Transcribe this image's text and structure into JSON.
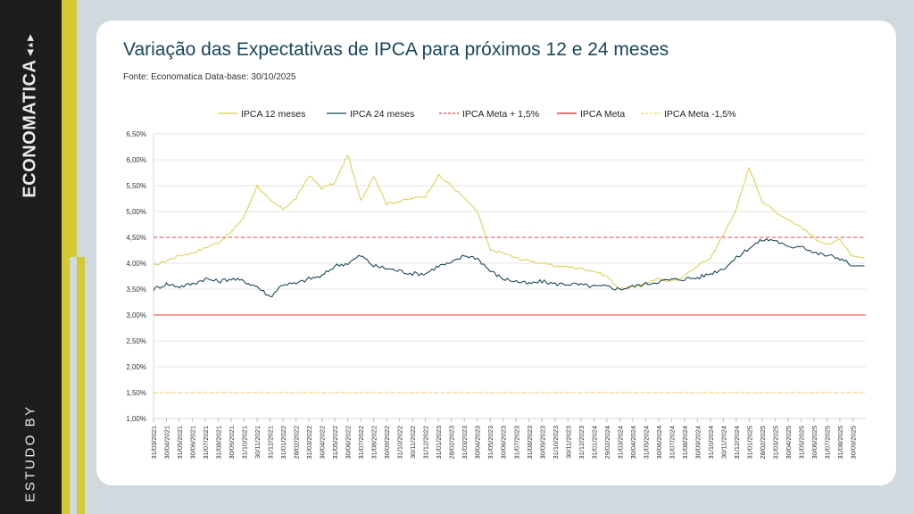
{
  "sidebar": {
    "brand": "ECONOMATICA",
    "study_label": "ESTUDO BY"
  },
  "header": {
    "title": "Variação das Expectativas de IPCA para próximos 12 e 24 meses",
    "source": "Fonte: Economatica Data-base: 30/10/2025"
  },
  "colors": {
    "ipca12": "#d8cf4a",
    "ipca24": "#1b4a5a",
    "meta_plus": "#e04545",
    "meta": "#f08080",
    "meta_minus": "#f5d36b",
    "grid": "#e6e6e6",
    "title": "#17475b"
  },
  "chart_data": {
    "type": "line",
    "title": "Variação das Expectativas de IPCA para próximos 12 e 24 meses",
    "xlabel": "",
    "ylabel": "",
    "ylim": [
      1.0,
      6.5
    ],
    "y_ticks": [
      "1,00%",
      "1,50%",
      "2,00%",
      "2,50%",
      "3,00%",
      "3,50%",
      "4,00%",
      "4,50%",
      "5,00%",
      "5,50%",
      "6,00%",
      "6,50%"
    ],
    "grid": true,
    "legend_position": "top",
    "x_ticks": [
      "31/03/2021",
      "30/04/2021",
      "31/05/2021",
      "30/06/2021",
      "31/07/2021",
      "31/08/2021",
      "30/09/2021",
      "31/10/2021",
      "30/11/2021",
      "31/12/2021",
      "31/01/2022",
      "28/02/2022",
      "31/03/2022",
      "30/04/2022",
      "31/05/2022",
      "30/06/2022",
      "31/07/2022",
      "31/08/2022",
      "30/09/2022",
      "31/10/2022",
      "30/11/2022",
      "31/12/2022",
      "31/01/2023",
      "28/02/2023",
      "31/03/2023",
      "30/04/2023",
      "31/05/2023",
      "30/06/2023",
      "31/07/2023",
      "31/08/2023",
      "30/09/2023",
      "31/10/2023",
      "30/11/2023",
      "31/12/2023",
      "31/01/2024",
      "29/02/2024",
      "31/03/2024",
      "30/04/2024",
      "31/05/2024",
      "30/06/2024",
      "31/07/2024",
      "31/08/2024",
      "30/09/2024",
      "31/10/2024",
      "30/11/2024",
      "31/12/2024",
      "31/01/2025",
      "28/02/2025",
      "31/03/2025",
      "30/04/2025",
      "31/05/2025",
      "30/06/2025",
      "31/07/2025",
      "31/08/2025",
      "30/09/2025"
    ],
    "series": [
      {
        "name": "IPCA 12 meses",
        "style": "solid",
        "values": [
          3.95,
          4.05,
          4.15,
          4.2,
          4.3,
          4.4,
          4.6,
          4.9,
          5.5,
          5.2,
          5.05,
          5.25,
          5.7,
          5.45,
          5.55,
          6.1,
          5.2,
          5.7,
          5.15,
          5.2,
          5.25,
          5.3,
          5.7,
          5.5,
          5.25,
          5.0,
          4.25,
          4.2,
          4.1,
          4.05,
          4.0,
          3.95,
          3.93,
          3.9,
          3.85,
          3.75,
          3.5,
          3.55,
          3.6,
          3.7,
          3.65,
          3.75,
          3.95,
          4.1,
          4.55,
          5.05,
          5.85,
          5.2,
          5.0,
          4.85,
          4.7,
          4.5,
          4.35,
          4.45,
          4.1
        ]
      },
      {
        "name": "IPCA 24 meses",
        "style": "solid",
        "values": [
          3.5,
          3.6,
          3.55,
          3.6,
          3.7,
          3.65,
          3.7,
          3.65,
          3.55,
          3.35,
          3.6,
          3.6,
          3.7,
          3.75,
          3.95,
          4.0,
          4.15,
          3.95,
          3.9,
          3.85,
          3.8,
          3.8,
          3.95,
          4.0,
          4.15,
          4.1,
          3.85,
          3.7,
          3.65,
          3.6,
          3.65,
          3.6,
          3.6,
          3.58,
          3.55,
          3.55,
          3.5,
          3.55,
          3.6,
          3.65,
          3.68,
          3.7,
          3.72,
          3.8,
          3.9,
          4.1,
          4.3,
          4.45,
          4.45,
          4.3,
          4.35,
          4.2,
          4.15,
          4.1,
          3.95
        ]
      },
      {
        "name": "IPCA Meta + 1,5%",
        "style": "dashed",
        "constant": 4.5
      },
      {
        "name": "IPCA Meta",
        "style": "solid",
        "constant": 3.0
      },
      {
        "name": "IPCA Meta -1,5%",
        "style": "dashed",
        "constant": 1.5
      }
    ],
    "legend": [
      "IPCA 12 meses",
      "IPCA 24 meses",
      "IPCA Meta + 1,5%",
      "IPCA Meta",
      "IPCA Meta -1,5%"
    ]
  }
}
